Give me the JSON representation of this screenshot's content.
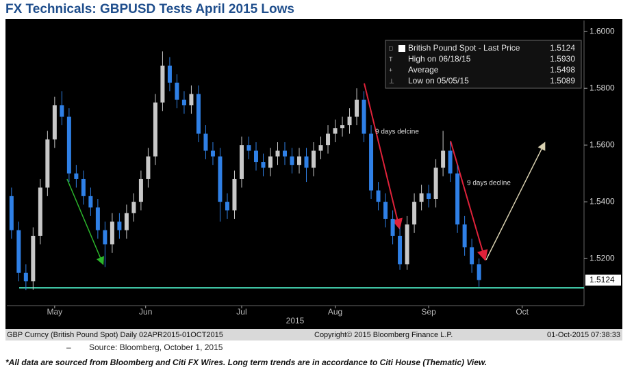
{
  "chart_data": {
    "type": "candlestick",
    "title": "FX Technicals: GBPUSD Tests April 2015 Lows",
    "xlabel": "2015",
    "x": [
      0,
      2,
      4,
      6,
      8,
      10,
      12,
      14,
      16,
      18,
      20,
      22,
      24,
      26,
      28,
      30,
      32,
      34,
      36,
      38,
      40,
      42,
      44,
      46,
      48,
      50,
      52,
      54,
      56,
      58,
      60,
      62,
      64,
      66,
      68,
      70,
      72,
      74,
      76,
      78,
      80,
      82,
      84,
      86,
      88,
      90,
      92,
      94,
      96,
      98,
      100,
      102,
      104,
      106,
      108,
      110,
      112,
      114,
      116,
      118,
      120,
      122,
      124,
      126,
      128,
      130
    ],
    "open": [
      1.542,
      1.53,
      1.515,
      1.512,
      1.528,
      1.545,
      1.562,
      1.574,
      1.57,
      1.55,
      1.548,
      1.542,
      1.538,
      1.53,
      1.525,
      1.533,
      1.53,
      1.536,
      1.54,
      1.548,
      1.556,
      1.575,
      1.588,
      1.582,
      1.576,
      1.574,
      1.578,
      1.564,
      1.558,
      1.556,
      1.54,
      1.537,
      1.548,
      1.56,
      1.558,
      1.554,
      1.552,
      1.556,
      1.558,
      1.556,
      1.553,
      1.556,
      1.552,
      1.558,
      1.56,
      1.564,
      1.566,
      1.567,
      1.57,
      1.576,
      1.564,
      1.544,
      1.54,
      1.534,
      1.528,
      1.518,
      1.532,
      1.54,
      1.543,
      1.541,
      1.552,
      1.558,
      1.55,
      1.532,
      1.524,
      1.518
    ],
    "high": [
      1.545,
      1.533,
      1.518,
      1.531,
      1.548,
      1.565,
      1.577,
      1.579,
      1.573,
      1.553,
      1.551,
      1.545,
      1.541,
      1.533,
      1.536,
      1.536,
      1.539,
      1.543,
      1.551,
      1.559,
      1.578,
      1.593,
      1.591,
      1.585,
      1.579,
      1.581,
      1.581,
      1.567,
      1.561,
      1.559,
      1.543,
      1.551,
      1.563,
      1.563,
      1.561,
      1.557,
      1.559,
      1.561,
      1.561,
      1.559,
      1.559,
      1.559,
      1.561,
      1.563,
      1.567,
      1.569,
      1.57,
      1.573,
      1.58,
      1.579,
      1.567,
      1.547,
      1.543,
      1.537,
      1.531,
      1.535,
      1.543,
      1.546,
      1.546,
      1.555,
      1.565,
      1.561,
      1.553,
      1.535,
      1.527,
      1.52
    ],
    "low": [
      1.527,
      1.512,
      1.5089,
      1.509,
      1.525,
      1.542,
      1.559,
      1.567,
      1.547,
      1.545,
      1.539,
      1.535,
      1.527,
      1.517,
      1.522,
      1.527,
      1.527,
      1.533,
      1.537,
      1.545,
      1.553,
      1.572,
      1.579,
      1.573,
      1.571,
      1.571,
      1.561,
      1.555,
      1.553,
      1.533,
      1.534,
      1.534,
      1.545,
      1.555,
      1.551,
      1.549,
      1.549,
      1.553,
      1.553,
      1.55,
      1.55,
      1.547,
      1.549,
      1.555,
      1.557,
      1.561,
      1.563,
      1.564,
      1.567,
      1.561,
      1.541,
      1.537,
      1.531,
      1.525,
      1.516,
      1.516,
      1.529,
      1.537,
      1.538,
      1.538,
      1.549,
      1.547,
      1.529,
      1.521,
      1.515,
      1.51
    ],
    "close": [
      1.53,
      1.515,
      1.512,
      1.528,
      1.545,
      1.562,
      1.574,
      1.57,
      1.55,
      1.548,
      1.542,
      1.538,
      1.53,
      1.525,
      1.533,
      1.53,
      1.536,
      1.54,
      1.548,
      1.556,
      1.575,
      1.588,
      1.582,
      1.576,
      1.574,
      1.578,
      1.564,
      1.558,
      1.556,
      1.54,
      1.537,
      1.548,
      1.56,
      1.558,
      1.554,
      1.552,
      1.556,
      1.558,
      1.556,
      1.553,
      1.556,
      1.552,
      1.558,
      1.56,
      1.564,
      1.566,
      1.567,
      1.57,
      1.576,
      1.564,
      1.544,
      1.54,
      1.534,
      1.528,
      1.518,
      1.532,
      1.54,
      1.543,
      1.541,
      1.552,
      1.558,
      1.55,
      1.532,
      1.524,
      1.518,
      1.5124
    ],
    "up_color": "#c8c8c8",
    "down_color": "#2f80e6",
    "xlim": [
      -1.3,
      159.2
    ],
    "xticks": [
      {
        "value": 12,
        "label": "May"
      },
      {
        "value": 37.3,
        "label": "Jun"
      },
      {
        "value": 64,
        "label": "Jul"
      },
      {
        "value": 90,
        "label": "Aug"
      },
      {
        "value": 116,
        "label": "Sep"
      },
      {
        "value": 142,
        "label": "Oct"
      }
    ],
    "ylim": [
      1.5034,
      1.6039
    ],
    "yticks": [
      {
        "value": 1.52,
        "label": "1.5200"
      },
      {
        "value": 1.54,
        "label": "1.5400"
      },
      {
        "value": 1.56,
        "label": "1.5600"
      },
      {
        "value": 1.58,
        "label": "1.5800"
      },
      {
        "value": 1.6,
        "label": "1.6000"
      }
    ],
    "last_price": 1.5124,
    "legend": [
      {
        "name": "British Pound Spot - Last Price",
        "value": 1.5124
      },
      {
        "name": "High on 06/18/15",
        "value": {
          "value": 1.593,
          "label": "1.5930"
        }
      },
      {
        "name": "Average",
        "value": 1.5498
      },
      {
        "name": "Low on 05/05/15",
        "value": 1.5089
      }
    ],
    "annotations": [
      "9 days delcine",
      "9 days decline"
    ],
    "footer": [
      "GBP Curncy (British Pound Spot)  Daily 02APR2015-01OCT2015",
      "Copyright© 2015 Bloomberg Finance L.P.",
      "01-Oct-2015 07:38:33"
    ]
  },
  "bullet": "–",
  "source": "Source: Bloomberg, October 1, 2015",
  "note": "*All data are sourced from Bloomberg and Citi FX Wires. Long term trends are in accordance to Citi House (Thematic) View."
}
